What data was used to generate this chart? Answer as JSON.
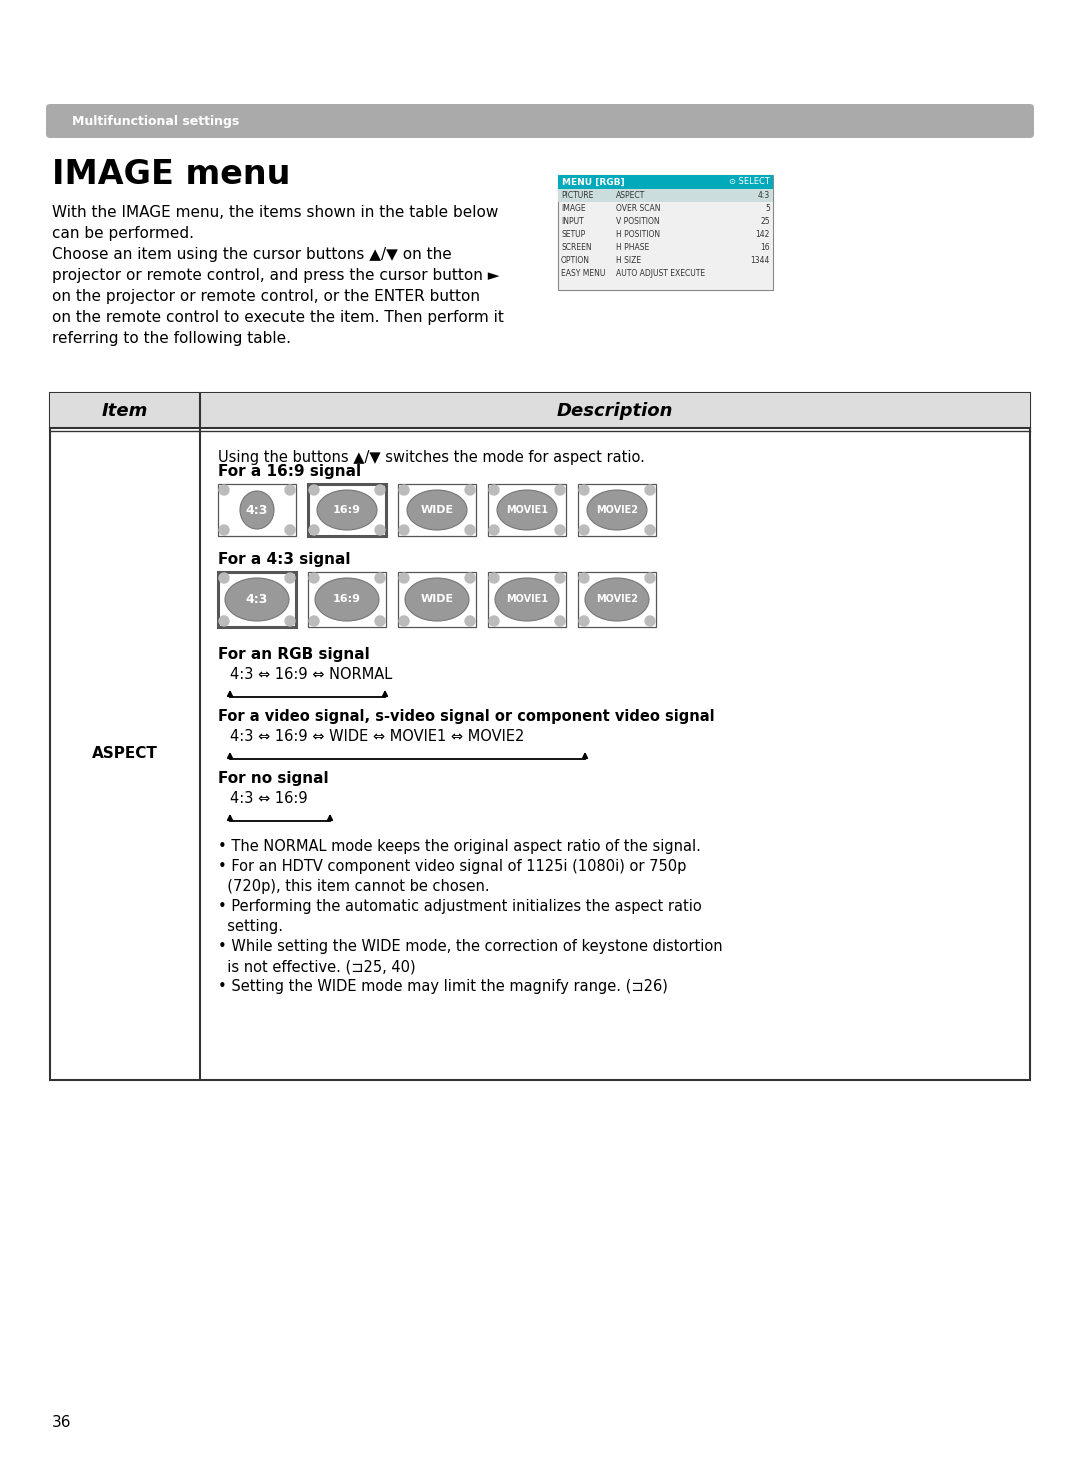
{
  "page_bg": "#ffffff",
  "page_number": "36",
  "banner_text": "Multifunctional settings",
  "banner_bg": "#aaaaaa",
  "banner_text_color": "#ffffff",
  "title": "IMAGE menu",
  "intro_lines": [
    "With the IMAGE menu, the items shown in the table below",
    "can be performed.",
    "Choose an item using the cursor buttons ▲/▼ on the",
    "projector or remote control, and press the cursor button ►",
    "on the projector or remote control, or the ENTER button",
    "on the remote control to execute the item. Then perform it",
    "referring to the following table."
  ],
  "menu_title": "MENU [RGB]",
  "menu_select": "⊙ SELECT",
  "menu_rows": [
    [
      "PICTURE",
      "ASPECT",
      "4:3"
    ],
    [
      "IMAGE",
      "OVER SCAN",
      "5"
    ],
    [
      "INPUT",
      "V POSITION",
      "25"
    ],
    [
      "SETUP",
      "H POSITION",
      "142"
    ],
    [
      "SCREEN",
      "H PHASE",
      "16"
    ],
    [
      "OPTION",
      "H SIZE",
      "1344"
    ],
    [
      "EASY MENU",
      "AUTO ADJUST EXECUTE",
      ""
    ]
  ],
  "table_header_item": "Item",
  "table_header_desc": "Description",
  "aspect_label": "ASPECT",
  "intro_aspect": "Using the buttons ▲/▼ switches the mode for aspect ratio.",
  "signal_169_label": "For a 16:9 signal",
  "signal_43_label": "For a 4:3 signal",
  "modes_169": [
    "4:3",
    "16:9",
    "WIDE",
    "MOVIE1",
    "MOVIE2"
  ],
  "modes_43": [
    "4:3",
    "16:9",
    "WIDE",
    "MOVIE1",
    "MOVIE2"
  ],
  "selected_169": 1,
  "selected_43": 0,
  "rgb_label": "For an RGB signal",
  "rgb_sequence": "4:3 ⇔ 16:9 ⇔ NORMAL",
  "video_label": "For a video signal, s-video signal or component video signal",
  "video_sequence": "4:3 ⇔ 16:9 ⇔ WIDE ⇔ MOVIE1 ⇔ MOVIE2",
  "nosignal_label": "For no signal",
  "nosignal_sequence": "4:3 ⇔ 16:9",
  "bullets": [
    "• The NORMAL mode keeps the original aspect ratio of the signal.",
    "• For an HDTV component video signal of 1125i (1080i) or 750p",
    "  (720p), this item cannot be chosen.",
    "• Performing the automatic adjustment initializes the aspect ratio",
    "  setting.",
    "• While setting the WIDE mode, the correction of keystone distortion",
    "  is not effective. (⊐25, 40)",
    "• Setting the WIDE mode may limit the magnify range. (⊐26)"
  ]
}
